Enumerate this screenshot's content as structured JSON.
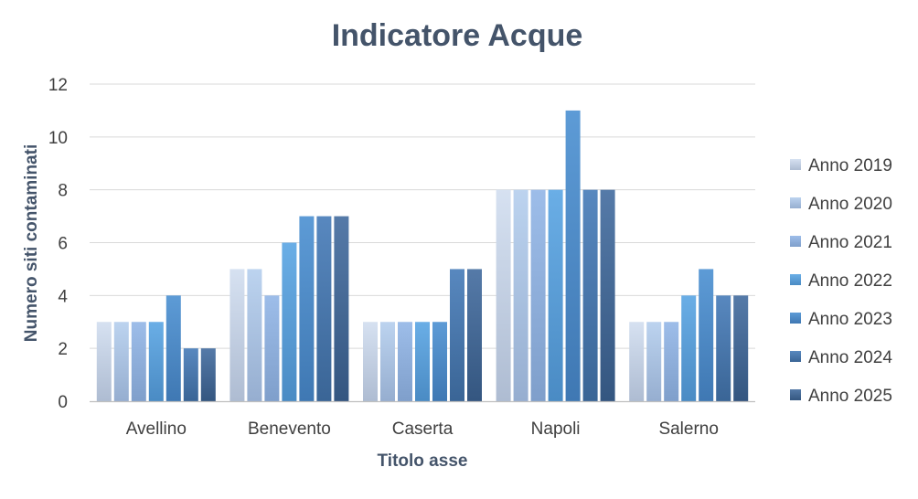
{
  "chart_data": {
    "type": "bar",
    "title": "Indicatore Acque",
    "xlabel": "Titolo asse",
    "ylabel": "Numero siti contaminati",
    "categories": [
      "Avellino",
      "Benevento",
      "Caserta",
      "Napoli",
      "Salerno"
    ],
    "series": [
      {
        "name": "Anno 2019",
        "values": [
          3,
          5,
          3,
          8,
          3
        ],
        "color_top": "#d6e1f1",
        "color_bottom": "#aebcd2"
      },
      {
        "name": "Anno 2020",
        "values": [
          3,
          5,
          3,
          8,
          3
        ],
        "color_top": "#bcd3ef",
        "color_bottom": "#96aed0"
      },
      {
        "name": "Anno 2021",
        "values": [
          3,
          4,
          3,
          8,
          3
        ],
        "color_top": "#9dbde9",
        "color_bottom": "#7f9fcb"
      },
      {
        "name": "Anno 2022",
        "values": [
          3,
          6,
          3,
          8,
          4
        ],
        "color_top": "#6aaee6",
        "color_bottom": "#4a8bc4"
      },
      {
        "name": "Anno 2023",
        "values": [
          4,
          7,
          3,
          11,
          5
        ],
        "color_top": "#5d9bd6",
        "color_bottom": "#3f78b3"
      },
      {
        "name": "Anno 2024",
        "values": [
          2,
          7,
          5,
          8,
          4
        ],
        "color_top": "#5888bf",
        "color_bottom": "#3a6596"
      },
      {
        "name": "Anno 2025",
        "values": [
          2,
          7,
          5,
          8,
          4
        ],
        "color_top": "#557aa8",
        "color_bottom": "#345680"
      }
    ],
    "ylim": [
      0,
      12
    ],
    "yticks": [
      "0",
      "2",
      "4",
      "6",
      "8",
      "10",
      "12"
    ],
    "grid": true,
    "legend_position": "right"
  }
}
